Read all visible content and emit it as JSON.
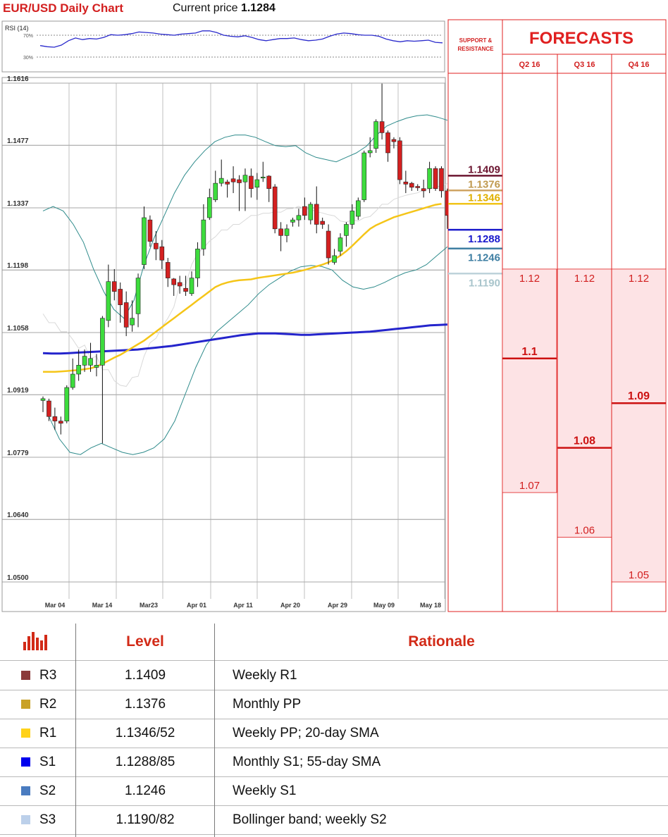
{
  "header": {
    "title": "EUR/USD Daily Chart",
    "price_label": "Current price",
    "price_value": "1.1284"
  },
  "colors": {
    "title_red": "#d32020",
    "forecast_red": "#e02020",
    "forecast_fill": "#fde3e5",
    "bull": "#3ddc3d",
    "bear": "#d42020",
    "sma20": "#f5c518",
    "sma55": "#2424cc",
    "bb": "#2e8b8b"
  },
  "rsi": {
    "label": "RSI (14)",
    "upper": "70%",
    "lower": "30%",
    "values": [
      51,
      49,
      48,
      52,
      60,
      65,
      62,
      64,
      63,
      66,
      71,
      70,
      71,
      73,
      76,
      75,
      74,
      72,
      71,
      70,
      72,
      73,
      74,
      78,
      78,
      75,
      70,
      68,
      67,
      69,
      66,
      62,
      60,
      62,
      64,
      64,
      65,
      62,
      60,
      61,
      63,
      68,
      72,
      74,
      73,
      71,
      70,
      70,
      68,
      63,
      60,
      58,
      60,
      59,
      60,
      61,
      57,
      56
    ]
  },
  "chart_data": {
    "type": "candlestick",
    "title": "EUR/USD Daily Chart",
    "ylim": [
      1.05,
      1.1616
    ],
    "y_ticks": [
      "1.1616",
      "1.1477",
      "1.1337",
      "1.1198",
      "1.1058",
      "1.0919",
      "1.0779",
      "1.0640",
      "1.0500"
    ],
    "x_ticks": [
      "Mar 04",
      "Mar 14",
      "Mar23",
      "Apr 01",
      "Apr 11",
      "Apr 20",
      "Apr 29",
      "May 09",
      "May 18"
    ],
    "candles": [
      [
        1.0906,
        1.091,
        1.088,
        1.0915
      ],
      [
        1.0905,
        1.087,
        1.086,
        1.091
      ],
      [
        1.087,
        1.086,
        1.084,
        1.089
      ],
      [
        1.086,
        1.0855,
        1.083,
        1.087
      ],
      [
        1.086,
        1.0935,
        1.0855,
        1.094
      ],
      [
        1.0935,
        1.0965,
        1.093,
        1.1
      ],
      [
        1.0965,
        1.0985,
        1.095,
        1.102
      ],
      [
        1.0985,
        1.1005,
        1.097,
        1.102
      ],
      [
        1.0985,
        1.1,
        1.097,
        1.1035
      ],
      [
        1.098,
        1.0985,
        1.096,
        1.101
      ],
      [
        1.0985,
        1.109,
        1.081,
        1.1095
      ],
      [
        1.1085,
        1.1172,
        1.107,
        1.121
      ],
      [
        1.1172,
        1.115,
        1.113,
        1.12
      ],
      [
        1.1155,
        1.112,
        1.108,
        1.117
      ],
      [
        1.1125,
        1.107,
        1.105,
        1.115
      ],
      [
        1.1075,
        1.109,
        1.106,
        1.113
      ],
      [
        1.11,
        1.118,
        1.107,
        1.119
      ],
      [
        1.121,
        1.1315,
        1.12,
        1.134
      ],
      [
        1.131,
        1.1262,
        1.125,
        1.132
      ],
      [
        1.1258,
        1.1245,
        1.122,
        1.1285
      ],
      [
        1.125,
        1.122,
        1.12,
        1.1265
      ],
      [
        1.1215,
        1.118,
        1.116,
        1.1225
      ],
      [
        1.1178,
        1.1165,
        1.114,
        1.118
      ],
      [
        1.117,
        1.1162,
        1.1145,
        1.1185
      ],
      [
        1.1157,
        1.115,
        1.114,
        1.1185
      ],
      [
        1.1145,
        1.118,
        1.114,
        1.1195
      ],
      [
        1.118,
        1.1245,
        1.116,
        1.126
      ],
      [
        1.1245,
        1.131,
        1.123,
        1.1345
      ],
      [
        1.1315,
        1.136,
        1.131,
        1.138
      ],
      [
        1.1355,
        1.1392,
        1.135,
        1.142
      ],
      [
        1.1392,
        1.1403,
        1.1385,
        1.1445
      ],
      [
        1.1395,
        1.139,
        1.136,
        1.14
      ],
      [
        1.1402,
        1.1395,
        1.137,
        1.143
      ],
      [
        1.14,
        1.1393,
        1.133,
        1.141
      ],
      [
        1.1395,
        1.141,
        1.133,
        1.1425
      ],
      [
        1.1408,
        1.138,
        1.136,
        1.1425
      ],
      [
        1.1383,
        1.14,
        1.1355,
        1.1415
      ],
      [
        1.1404,
        1.1406,
        1.1395,
        1.144
      ],
      [
        1.1408,
        1.138,
        1.135,
        1.141
      ],
      [
        1.1384,
        1.129,
        1.128,
        1.139
      ],
      [
        1.129,
        1.1275,
        1.124,
        1.1305
      ],
      [
        1.1275,
        1.129,
        1.126,
        1.13
      ],
      [
        1.1305,
        1.131,
        1.1295,
        1.1315
      ],
      [
        1.131,
        1.132,
        1.1295,
        1.1335
      ],
      [
        1.134,
        1.132,
        1.131,
        1.136
      ],
      [
        1.131,
        1.1345,
        1.13,
        1.135
      ],
      [
        1.1345,
        1.13,
        1.128,
        1.1385
      ],
      [
        1.1307,
        1.13,
        1.129,
        1.1315
      ],
      [
        1.1285,
        1.1225,
        1.121,
        1.13
      ],
      [
        1.1215,
        1.123,
        1.121,
        1.1245
      ],
      [
        1.124,
        1.127,
        1.123,
        1.128
      ],
      [
        1.1275,
        1.13,
        1.125,
        1.1305
      ],
      [
        1.13,
        1.133,
        1.129,
        1.1345
      ],
      [
        1.1318,
        1.1353,
        1.131,
        1.136
      ],
      [
        1.1355,
        1.146,
        1.135,
        1.1465
      ],
      [
        1.146,
        1.1465,
        1.145,
        1.1495
      ],
      [
        1.147,
        1.153,
        1.146,
        1.1535
      ],
      [
        1.153,
        1.1505,
        1.149,
        1.1615
      ],
      [
        1.1505,
        1.146,
        1.144,
        1.151
      ],
      [
        1.149,
        1.1485,
        1.147,
        1.1495
      ],
      [
        1.1487,
        1.14,
        1.139,
        1.1495
      ],
      [
        1.1395,
        1.139,
        1.137,
        1.142
      ],
      [
        1.1392,
        1.1383,
        1.1375,
        1.1395
      ],
      [
        1.1385,
        1.1382,
        1.1375,
        1.139
      ],
      [
        1.138,
        1.1375,
        1.136,
        1.14
      ],
      [
        1.138,
        1.1425,
        1.137,
        1.144
      ],
      [
        1.1425,
        1.138,
        1.1375,
        1.143
      ],
      [
        1.1425,
        1.1375,
        1.136,
        1.143
      ],
      [
        1.1375,
        1.132,
        1.129,
        1.138
      ],
      [
        1.1318,
        1.1322,
        1.131,
        1.1325
      ],
      [
        1.1315,
        1.1319,
        1.131,
        1.133
      ],
      [
        1.132,
        1.1318,
        1.13,
        1.133
      ],
      [
        1.1316,
        1.1285,
        1.128,
        1.132
      ]
    ],
    "series": [
      {
        "key": "sma20",
        "values": [
          1.097,
          1.097,
          1.097,
          1.0971,
          1.0972,
          1.0973,
          1.0974,
          1.0976,
          1.0978,
          1.0982,
          1.0988,
          1.0995,
          1.1002,
          1.1008,
          1.1016,
          1.1024,
          1.1032,
          1.104,
          1.105,
          1.106,
          1.107,
          1.108,
          1.109,
          1.11,
          1.111,
          1.112,
          1.113,
          1.114,
          1.115,
          1.116,
          1.1166,
          1.117,
          1.1173,
          1.1175,
          1.1176,
          1.1177,
          1.118,
          1.1182,
          1.1184,
          1.1186,
          1.1188,
          1.119,
          1.1192,
          1.1195,
          1.1198,
          1.1202,
          1.1206,
          1.121,
          1.1215,
          1.1222,
          1.123,
          1.124,
          1.1252,
          1.1265,
          1.1278,
          1.129,
          1.1298,
          1.1304,
          1.131,
          1.1316,
          1.132,
          1.1324,
          1.1328,
          1.1332,
          1.1336,
          1.134,
          1.1344,
          1.1346
        ]
      },
      {
        "key": "sma55",
        "values": [
          1.1012,
          1.1011,
          1.1011,
          1.1012,
          1.1013,
          1.1014,
          1.1015,
          1.1016,
          1.1017,
          1.1018,
          1.1019,
          1.102,
          1.1022,
          1.1024,
          1.1026,
          1.1028,
          1.1031,
          1.1034,
          1.1037,
          1.104,
          1.1043,
          1.1046,
          1.1049,
          1.1052,
          1.1054,
          1.1056,
          1.1056,
          1.1056,
          1.1055,
          1.1054,
          1.1053,
          1.1053,
          1.1054,
          1.1055,
          1.1056,
          1.1057,
          1.1058,
          1.1059,
          1.106,
          1.1062,
          1.1064,
          1.1066,
          1.1068,
          1.107,
          1.1072,
          1.1074,
          1.1075,
          1.1076
        ]
      },
      {
        "key": "bb_upper",
        "values": [
          1.133,
          1.134,
          1.133,
          1.13,
          1.126,
          1.12,
          1.115,
          1.111,
          1.109,
          1.113,
          1.121,
          1.127,
          1.132,
          1.137,
          1.141,
          1.144,
          1.1465,
          1.1485,
          1.1495,
          1.15,
          1.15,
          1.1495,
          1.1485,
          1.1476,
          1.1474,
          1.1476,
          1.146,
          1.145,
          1.1445,
          1.144,
          1.145,
          1.146,
          1.1475,
          1.15,
          1.152,
          1.153,
          1.1538,
          1.1543,
          1.1545,
          1.154,
          1.1533
        ]
      },
      {
        "key": "bb_lower",
        "values": [
          1.087,
          1.082,
          1.079,
          1.0785,
          1.08,
          1.081,
          1.08,
          1.079,
          1.0785,
          1.079,
          1.08,
          1.082,
          1.086,
          1.092,
          1.098,
          1.103,
          1.106,
          1.108,
          1.11,
          1.112,
          1.1145,
          1.1165,
          1.118,
          1.1195,
          1.1205,
          1.1208,
          1.1206,
          1.1198,
          1.1175,
          1.116,
          1.1155,
          1.116,
          1.117,
          1.1182,
          1.1192,
          1.1198,
          1.121,
          1.123,
          1.125
        ]
      }
    ],
    "levels": [
      {
        "value": "1.1409",
        "color": "#6b1530",
        "text_color": "#6b1530"
      },
      {
        "value": "1.1376",
        "color": "#cfa463",
        "text_color": "#c09a50"
      },
      {
        "value": "1.1346",
        "color": "#f0c419",
        "text_color": "#e0b000"
      },
      {
        "value": "1.1288",
        "color": "#1a1acc",
        "text_color": "#1a1acc"
      },
      {
        "value": "1.1246",
        "color": "#3f7fa3",
        "text_color": "#3f7fa3"
      },
      {
        "value": "1.1190",
        "color": "#bed3da",
        "text_color": "#a9c5cc"
      }
    ]
  },
  "support": {
    "header": [
      "SUPPORT &",
      "RESISTANCE"
    ]
  },
  "forecasts": {
    "title": "FORECASTS",
    "columns": [
      {
        "label": "Q2 16",
        "high": "1.12",
        "mid": "1.1",
        "low": "1.07"
      },
      {
        "label": "Q3 16",
        "high": "1.12",
        "mid": "1.08",
        "low": "1.06"
      },
      {
        "label": "Q4 16",
        "high": "1.12",
        "mid": "1.09",
        "low": "1.05"
      }
    ]
  },
  "table": {
    "headers": {
      "level": "Level",
      "rationale": "Rationale"
    },
    "rows": [
      {
        "key": "R3",
        "level": "1.1409",
        "rationale": "Weekly R1",
        "color": "#8b3a3a"
      },
      {
        "key": "R2",
        "level": "1.1376",
        "rationale": "Monthly PP",
        "color": "#c9a227"
      },
      {
        "key": "R1",
        "level": "1.1346/52",
        "rationale": "Weekly PP; 20-day SMA",
        "color": "#ffd21a"
      },
      {
        "key": "S1",
        "level": "1.1288/85",
        "rationale": "Monthly S1; 55-day SMA",
        "color": "#0000ee"
      },
      {
        "key": "S2",
        "level": "1.1246",
        "rationale": "Weekly S1",
        "color": "#4a7cc0"
      },
      {
        "key": "S3",
        "level": "1.1190/82",
        "rationale": "Bollinger band; weekly S2",
        "color": "#bcd0ea"
      }
    ]
  }
}
